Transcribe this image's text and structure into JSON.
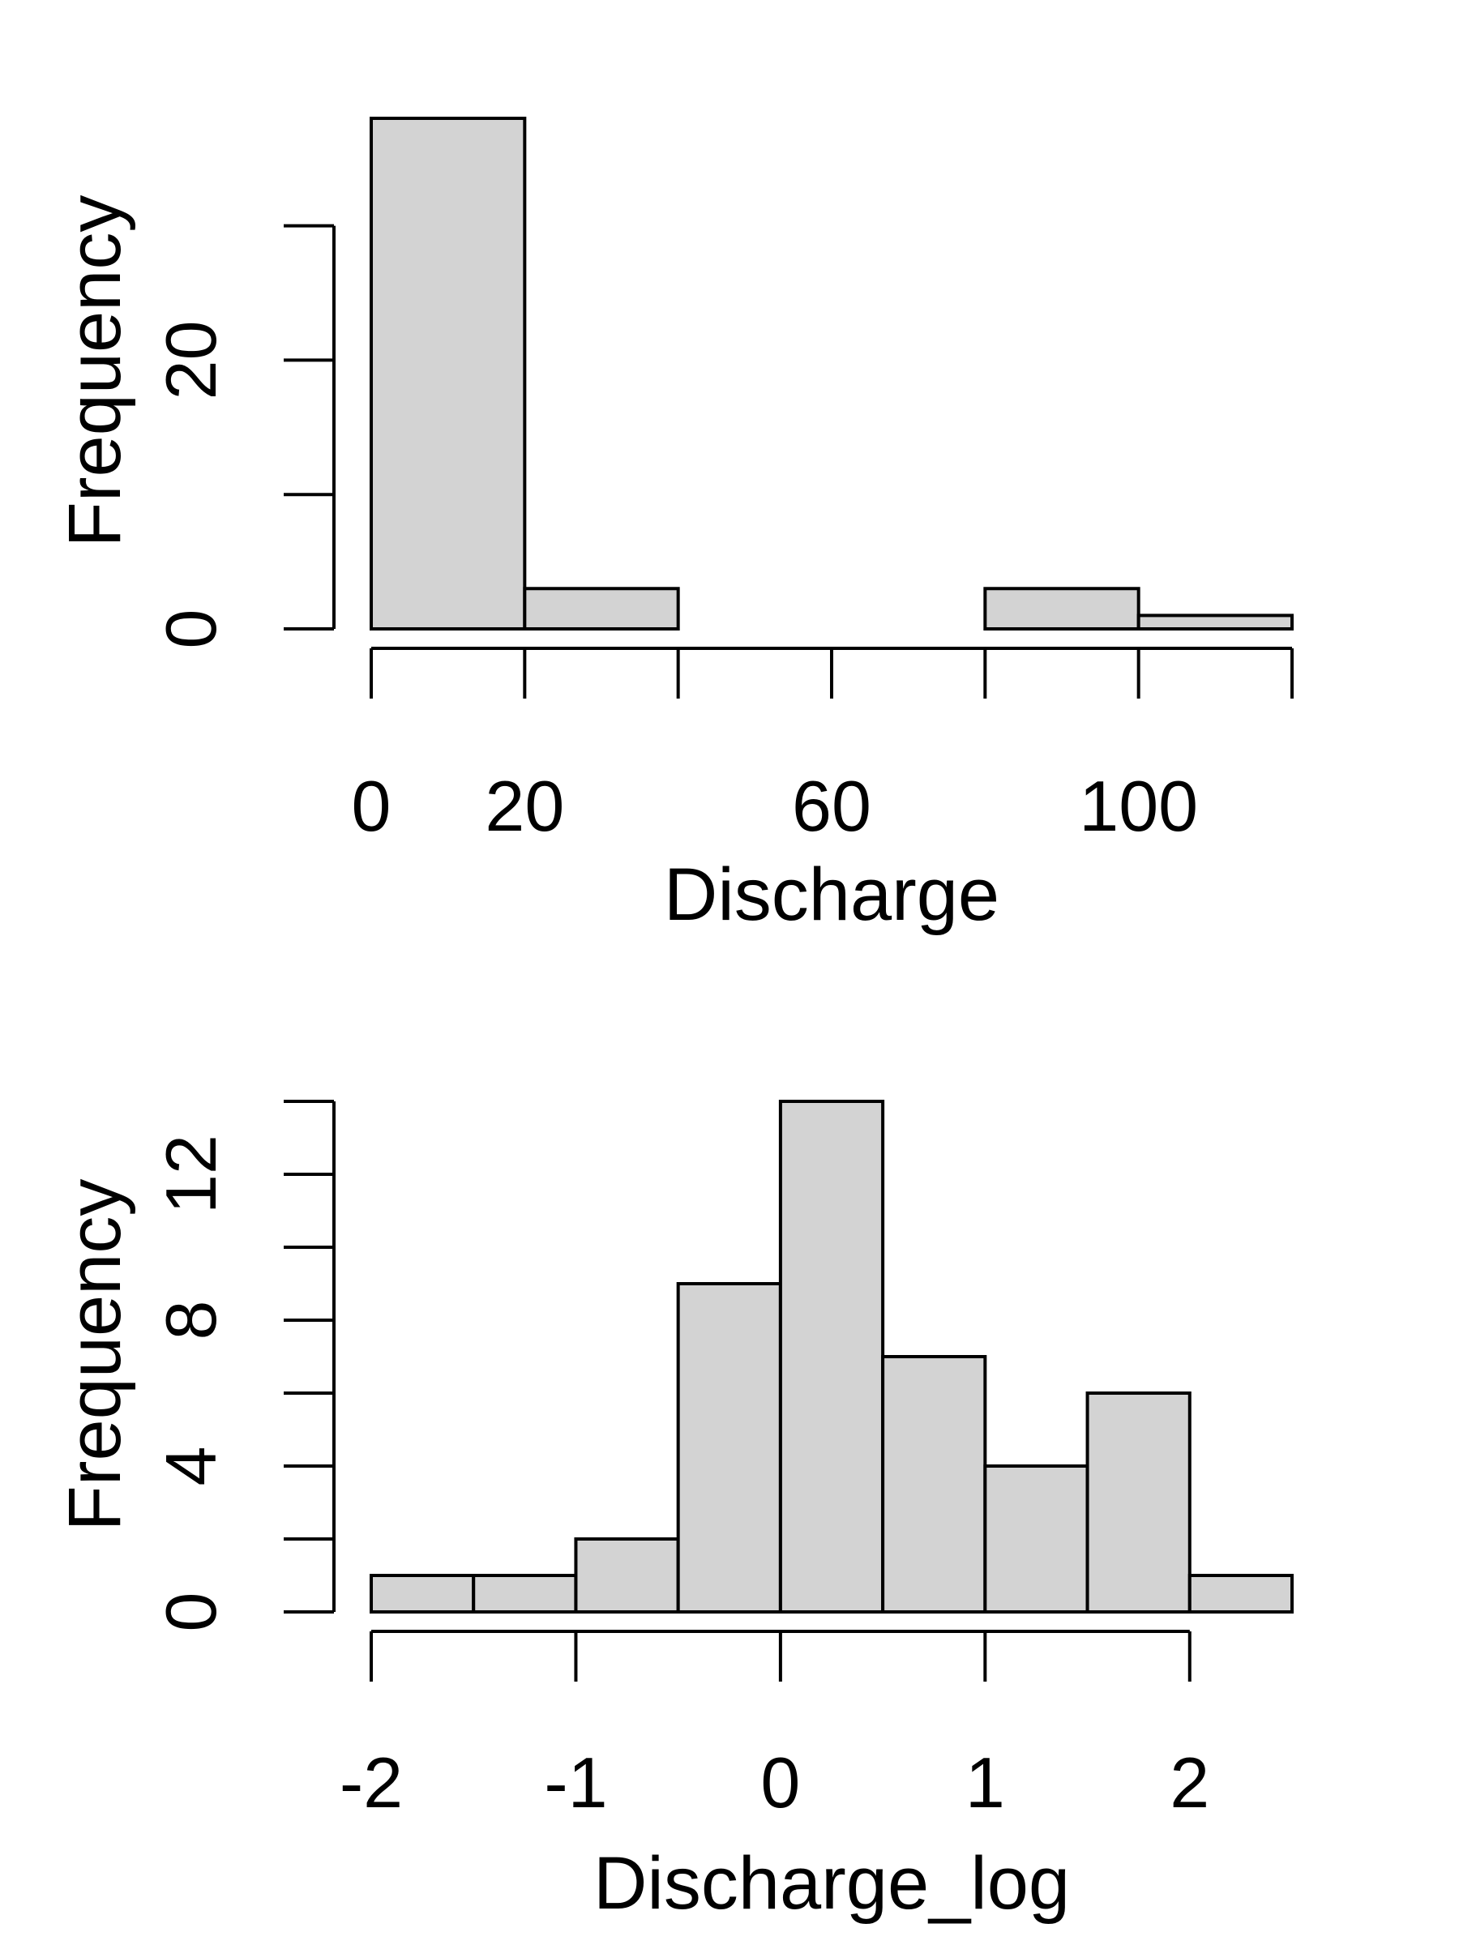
{
  "chart_data": [
    {
      "type": "bar",
      "subtype": "histogram",
      "xlabel": "Discharge",
      "ylabel": "Frequency",
      "bin_edges": [
        0,
        20,
        40,
        60,
        80,
        100,
        120
      ],
      "values": [
        38,
        3,
        0,
        0,
        3,
        1
      ],
      "xticks": [
        0,
        20,
        40,
        60,
        80,
        100,
        120
      ],
      "xtick_labels": [
        "0",
        "20",
        "",
        "60",
        "",
        "100",
        ""
      ],
      "yticks": [
        0,
        10,
        20,
        30
      ],
      "ytick_labels": [
        "0",
        "",
        "20",
        ""
      ],
      "xlim": [
        0,
        120
      ],
      "ylim": [
        0,
        38
      ],
      "bar_color": "#d3d3d3"
    },
    {
      "type": "bar",
      "subtype": "histogram",
      "xlabel": "Discharge_log",
      "ylabel": "Frequency",
      "bin_edges": [
        -2,
        -1.5,
        -1,
        -0.5,
        0,
        0.5,
        1,
        1.5,
        2,
        2.5
      ],
      "values": [
        1,
        1,
        2,
        9,
        14,
        7,
        4,
        6,
        1
      ],
      "xticks": [
        -2,
        -1,
        0,
        1,
        2
      ],
      "xtick_labels": [
        "-2",
        "-1",
        "0",
        "1",
        "2"
      ],
      "yticks": [
        0,
        2,
        4,
        6,
        8,
        10,
        12,
        14
      ],
      "ytick_labels": [
        "0",
        "",
        "4",
        "",
        "8",
        "",
        "12",
        ""
      ],
      "xlim": [
        -2,
        2.5
      ],
      "ylim": [
        0,
        14
      ],
      "bar_color": "#d3d3d3"
    }
  ]
}
